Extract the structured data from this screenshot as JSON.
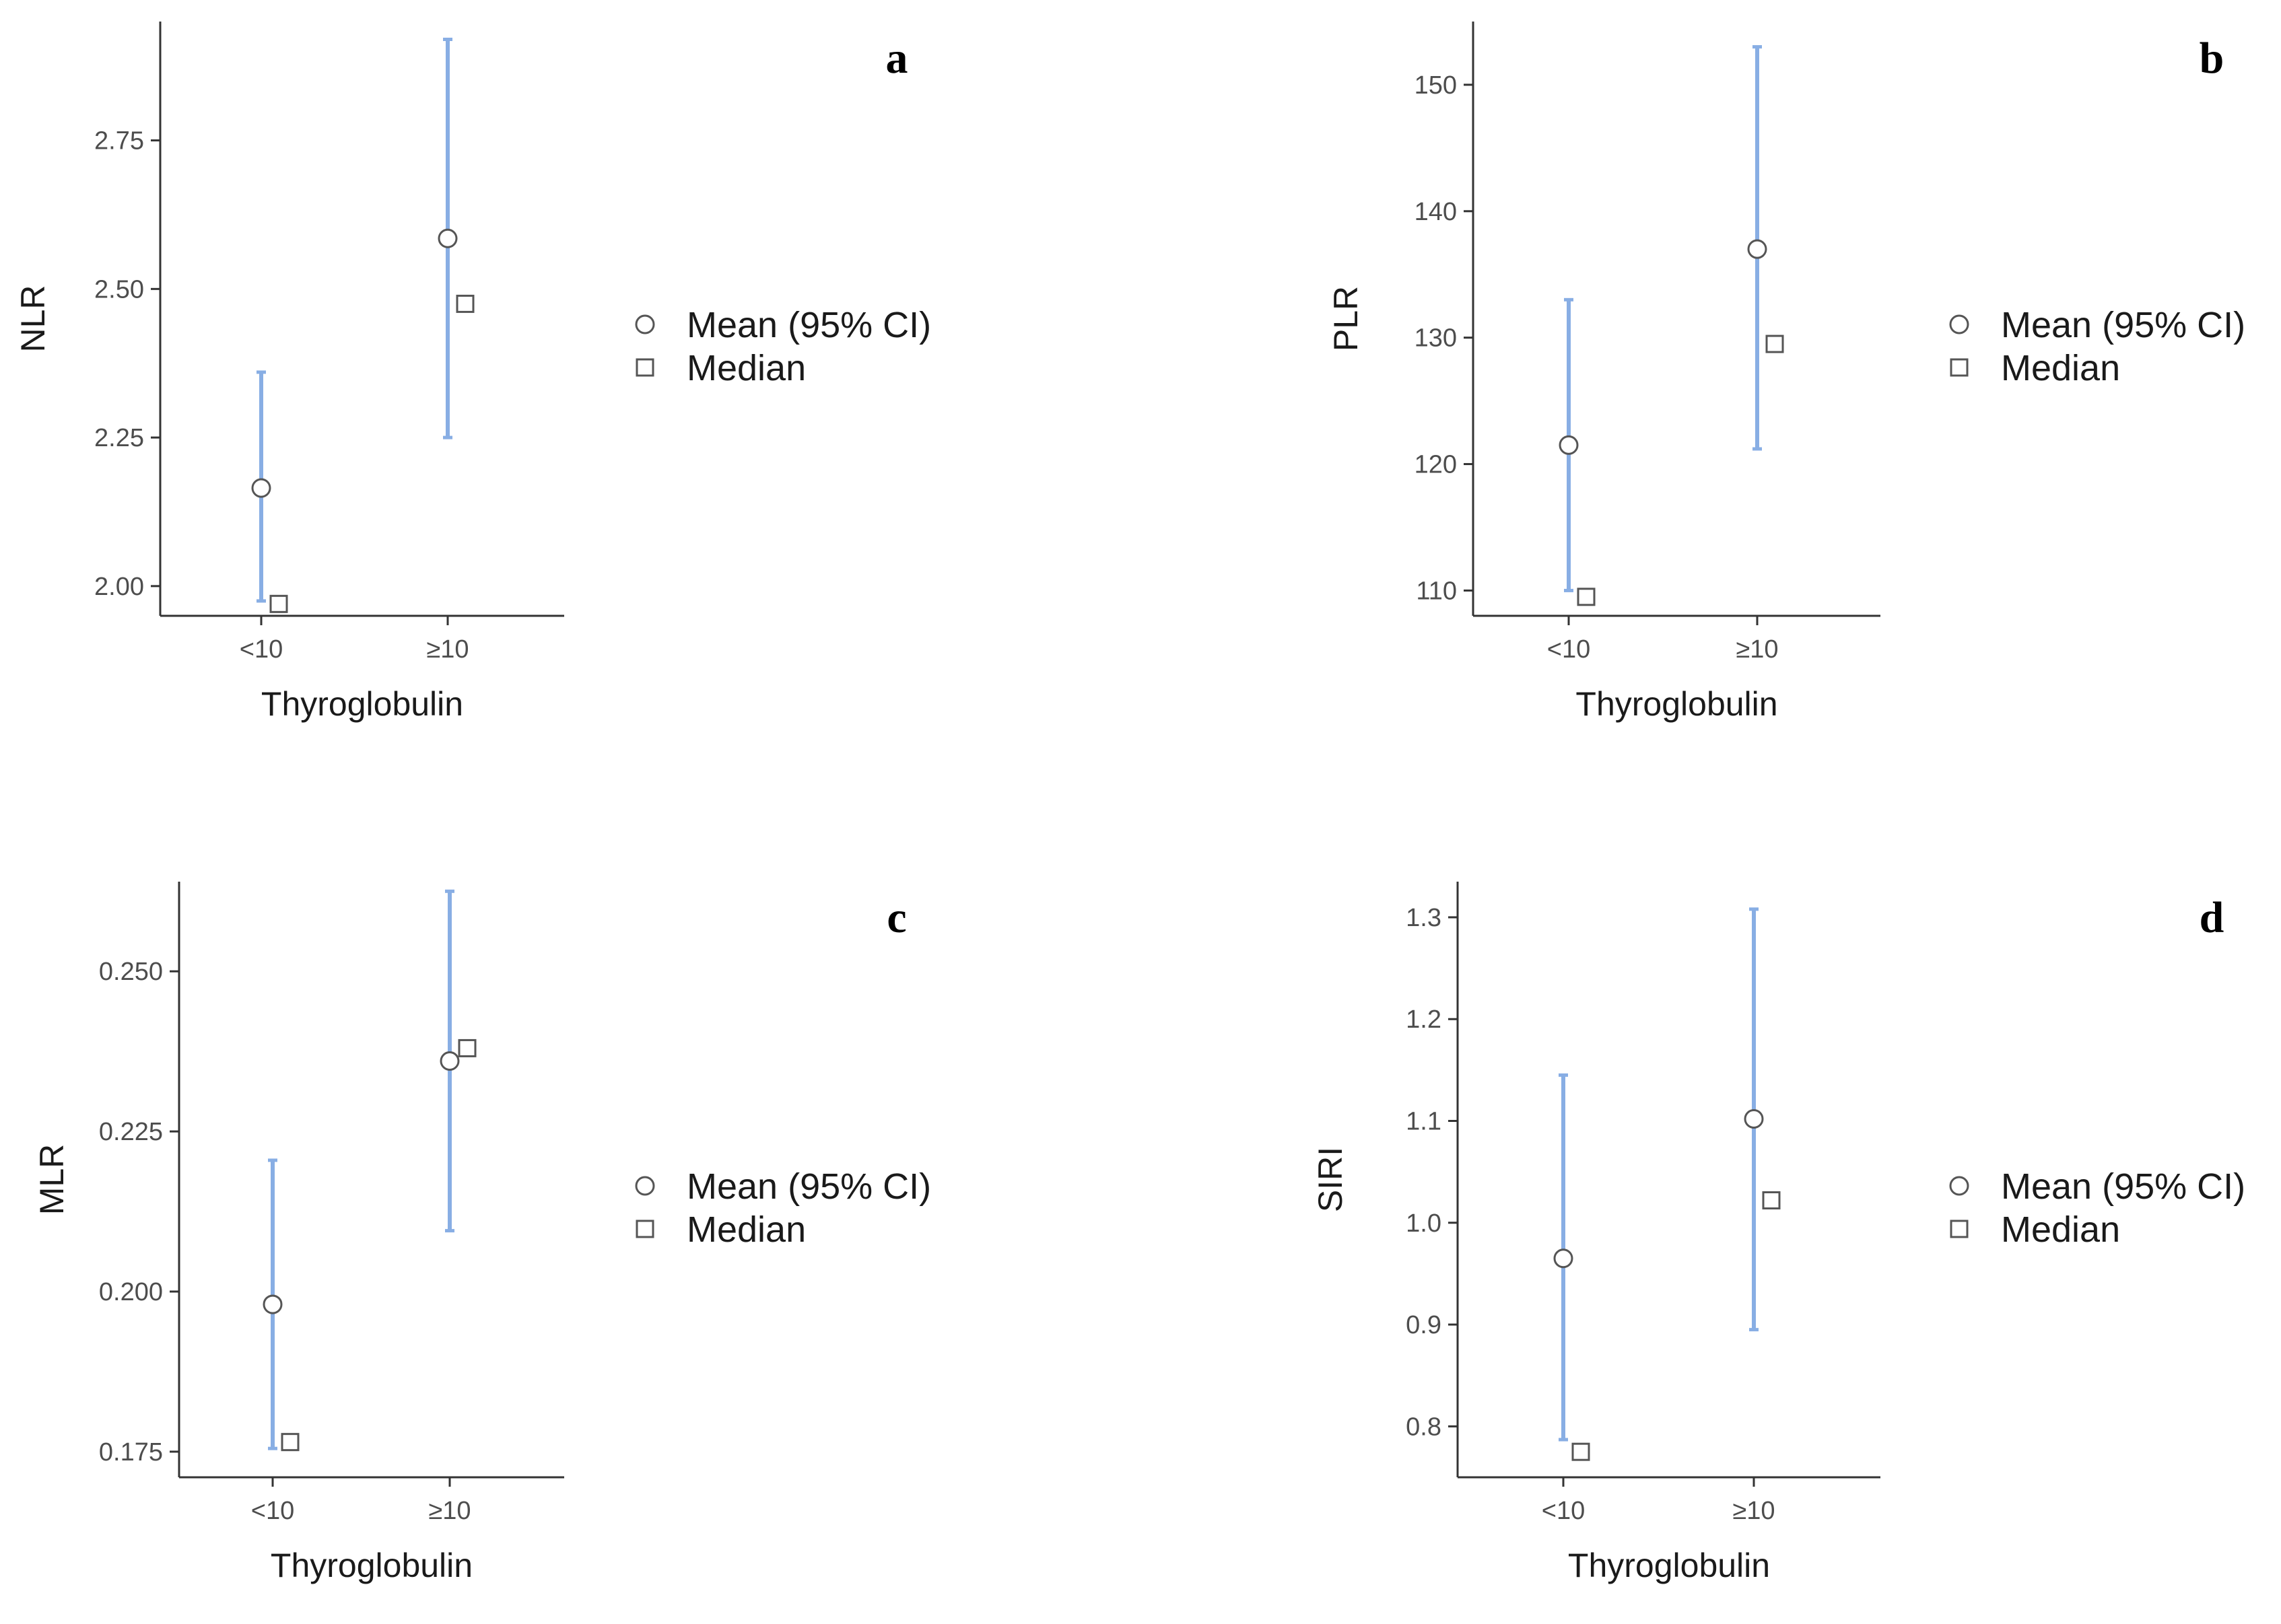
{
  "chart_data": [
    {
      "type": "scatter",
      "panel": "a",
      "xlabel": "Thyroglobulin",
      "ylabel": "NLR",
      "categories": [
        "<10",
        "≥10"
      ],
      "yticks": [
        "2.00",
        "2.25",
        "2.50",
        "2.75"
      ],
      "ylim": [
        1.95,
        2.95
      ],
      "series": [
        {
          "name": "Mean (95% CI)",
          "values": [
            2.165,
            2.585
          ],
          "ci_low": [
            1.975,
            2.25
          ],
          "ci_high": [
            2.36,
            2.92
          ]
        },
        {
          "name": "Median",
          "values": [
            1.97,
            2.475
          ]
        }
      ]
    },
    {
      "type": "scatter",
      "panel": "b",
      "xlabel": "Thyroglobulin",
      "ylabel": "PLR",
      "categories": [
        "<10",
        "≥10"
      ],
      "yticks": [
        "110",
        "120",
        "130",
        "140",
        "150"
      ],
      "ylim": [
        108,
        155
      ],
      "series": [
        {
          "name": "Mean (95% CI)",
          "values": [
            121.5,
            137
          ],
          "ci_low": [
            110,
            121.2
          ],
          "ci_high": [
            133,
            153
          ]
        },
        {
          "name": "Median",
          "values": [
            109.5,
            129.5
          ]
        }
      ]
    },
    {
      "type": "scatter",
      "panel": "c",
      "xlabel": "Thyroglobulin",
      "ylabel": "MLR",
      "categories": [
        "<10",
        "≥10"
      ],
      "yticks": [
        "0.175",
        "0.200",
        "0.225",
        "0.250"
      ],
      "ylim": [
        0.171,
        0.264
      ],
      "series": [
        {
          "name": "Mean (95% CI)",
          "values": [
            0.198,
            0.236
          ],
          "ci_low": [
            0.1755,
            0.2095
          ],
          "ci_high": [
            0.2205,
            0.2625
          ]
        },
        {
          "name": "Median",
          "values": [
            0.1765,
            0.238
          ]
        }
      ]
    },
    {
      "type": "scatter",
      "panel": "d",
      "xlabel": "Thyroglobulin",
      "ylabel": "SIRI",
      "categories": [
        "<10",
        "≥10"
      ],
      "yticks": [
        "0.8",
        "0.9",
        "1.0",
        "1.1",
        "1.2",
        "1.3"
      ],
      "ylim": [
        0.75,
        1.335
      ],
      "series": [
        {
          "name": "Mean (95% CI)",
          "values": [
            0.965,
            1.102
          ],
          "ci_low": [
            0.787,
            0.895
          ],
          "ci_high": [
            1.145,
            1.308
          ]
        },
        {
          "name": "Median",
          "values": [
            0.775,
            1.022
          ]
        }
      ]
    }
  ],
  "colors": {
    "ci_bar": "#88aee4",
    "marker_stroke": "#555555",
    "axis": "#333333"
  }
}
